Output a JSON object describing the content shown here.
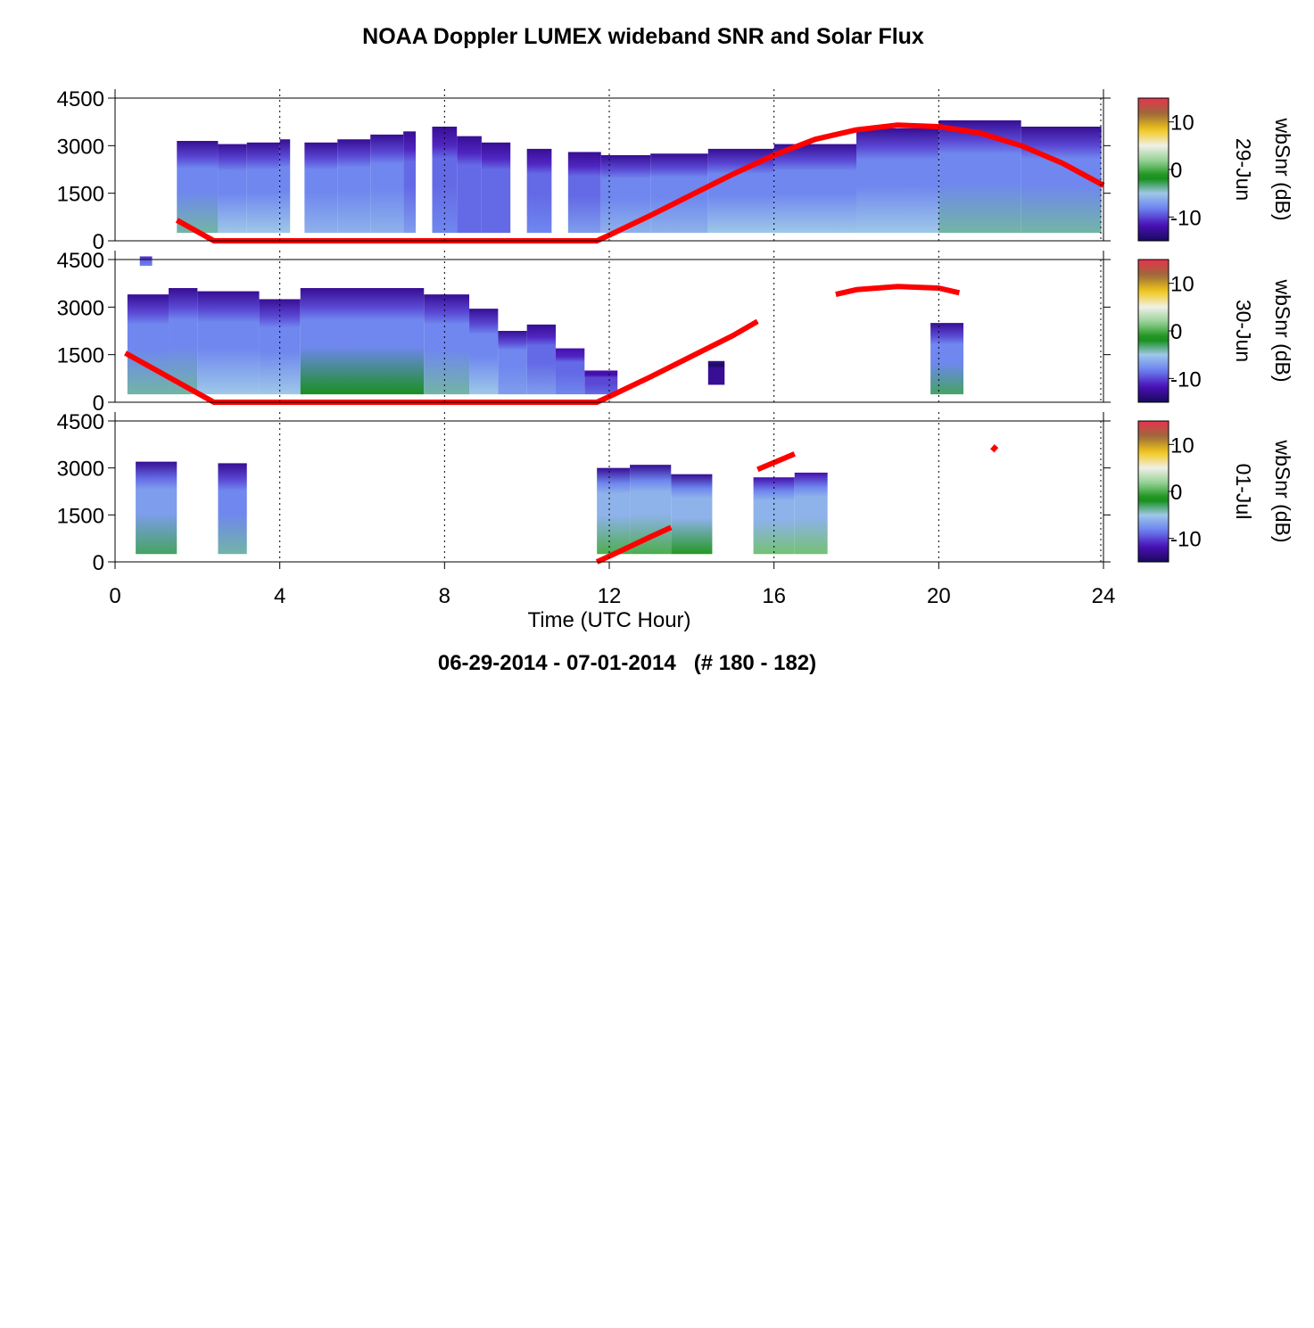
{
  "title": "NOAA Doppler LUMEX wideband SNR and Solar Flux",
  "footer": "06-29-2014 - 07-01-2014   (# 180 - 182)",
  "chart_data": {
    "type": "heatmap",
    "xlabel": "Time (UTC Hour)",
    "xlim": [
      0,
      24
    ],
    "xticks": [
      "0",
      "4",
      "8",
      "12",
      "16",
      "20",
      "24"
    ],
    "ylim": [
      0,
      4500
    ],
    "yticks": [
      "0",
      "1500",
      "3000",
      "4500"
    ],
    "colorbar": {
      "label": "wbSnr (dB)",
      "range": [
        -15,
        15
      ],
      "ticks": [
        "-10",
        "0",
        "10"
      ]
    },
    "colors": {
      "snr_scale": [
        "#1a0a5e",
        "#4a10b8",
        "#6a80f0",
        "#9ec8e8",
        "#0a8a0a",
        "#8fcf8f",
        "#f0f0e8",
        "#f2c81a",
        "#9a6a3a",
        "#e8334e"
      ],
      "solar_flux": "#ff0000"
    },
    "panels": [
      {
        "day": "29-Jun",
        "snr_columns": [
          {
            "x0": 1.5,
            "x1": 2.5,
            "top": 3150,
            "snr_low": -4,
            "snr_mid": -8,
            "snr_high": -13
          },
          {
            "x0": 2.5,
            "x1": 3.2,
            "top": 3050,
            "snr_low": -5,
            "snr_mid": -8,
            "snr_high": -13
          },
          {
            "x0": 3.2,
            "x1": 4.0,
            "top": 3100,
            "snr_low": -5,
            "snr_mid": -8,
            "snr_high": -13
          },
          {
            "x0": 4.0,
            "x1": 4.25,
            "top": 3200,
            "snr_low": -5,
            "snr_mid": -8,
            "snr_high": -13
          },
          {
            "x0": 4.6,
            "x1": 5.4,
            "top": 3100,
            "snr_low": -6,
            "snr_mid": -8,
            "snr_high": -13
          },
          {
            "x0": 5.4,
            "x1": 6.2,
            "top": 3200,
            "snr_low": -6,
            "snr_mid": -8,
            "snr_high": -13
          },
          {
            "x0": 6.2,
            "x1": 7.0,
            "top": 3350,
            "snr_low": -6,
            "snr_mid": -8,
            "snr_high": -13
          },
          {
            "x0": 7.0,
            "x1": 7.3,
            "top": 3450,
            "snr_low": -7,
            "snr_mid": -9,
            "snr_high": -13
          },
          {
            "x0": 7.7,
            "x1": 8.3,
            "top": 3600,
            "snr_low": -8,
            "snr_mid": -9,
            "snr_high": -13
          },
          {
            "x0": 8.3,
            "x1": 8.9,
            "top": 3300,
            "snr_low": -9,
            "snr_mid": -9,
            "snr_high": -13
          },
          {
            "x0": 8.9,
            "x1": 9.6,
            "top": 3100,
            "snr_low": -9,
            "snr_mid": -9,
            "snr_high": -13
          },
          {
            "x0": 10.0,
            "x1": 10.6,
            "top": 2900,
            "snr_low": -8,
            "snr_mid": -9,
            "snr_high": -13
          },
          {
            "x0": 11.0,
            "x1": 11.8,
            "top": 2800,
            "snr_low": -7,
            "snr_mid": -9,
            "snr_high": -13
          },
          {
            "x0": 11.8,
            "x1": 13.0,
            "top": 2700,
            "snr_low": -6,
            "snr_mid": -8,
            "snr_high": -13
          },
          {
            "x0": 13.0,
            "x1": 14.4,
            "top": 2750,
            "snr_low": -6,
            "snr_mid": -8,
            "snr_high": -13
          },
          {
            "x0": 14.4,
            "x1": 16.0,
            "top": 2900,
            "snr_low": -5,
            "snr_mid": -8,
            "snr_high": -13
          },
          {
            "x0": 16.0,
            "x1": 18.0,
            "top": 3050,
            "snr_low": -5,
            "snr_mid": -8,
            "snr_high": -13
          },
          {
            "x0": 18.0,
            "x1": 20.0,
            "top": 3550,
            "snr_low": -5,
            "snr_mid": -8,
            "snr_high": -13
          },
          {
            "x0": 20.0,
            "x1": 22.0,
            "top": 3800,
            "snr_low": -4,
            "snr_mid": -8,
            "snr_high": -13
          },
          {
            "x0": 22.0,
            "x1": 23.95,
            "top": 3600,
            "snr_low": -4,
            "snr_mid": -8,
            "snr_high": -13
          }
        ],
        "solar_flux_segments": [
          [
            [
              1.5,
              650
            ],
            [
              2.4,
              0
            ],
            [
              11.7,
              0
            ],
            [
              12.0,
              180
            ],
            [
              13.0,
              800
            ],
            [
              14.0,
              1450
            ],
            [
              15.0,
              2100
            ],
            [
              16.0,
              2700
            ],
            [
              17.0,
              3200
            ],
            [
              18.0,
              3500
            ],
            [
              19.0,
              3650
            ],
            [
              20.0,
              3600
            ],
            [
              21.0,
              3400
            ],
            [
              22.0,
              3000
            ],
            [
              23.0,
              2450
            ],
            [
              24.0,
              1750
            ]
          ]
        ]
      },
      {
        "day": "30-Jun",
        "snr_columns": [
          {
            "x0": 0.6,
            "x1": 0.9,
            "top": 4600,
            "bottom": 4300,
            "snr_low": -8,
            "snr_mid": -9,
            "snr_high": -10
          },
          {
            "x0": 0.3,
            "x1": 1.3,
            "top": 3400,
            "snr_low": -4,
            "snr_mid": -8,
            "snr_high": -13
          },
          {
            "x0": 1.3,
            "x1": 2.0,
            "top": 3600,
            "snr_low": -4,
            "snr_mid": -8,
            "snr_high": -13
          },
          {
            "x0": 2.0,
            "x1": 3.5,
            "top": 3500,
            "snr_low": -5,
            "snr_mid": -8,
            "snr_high": -13
          },
          {
            "x0": 3.5,
            "x1": 4.5,
            "top": 3250,
            "snr_low": -5,
            "snr_mid": -8,
            "snr_high": -13
          },
          {
            "x0": 4.5,
            "x1": 7.5,
            "top": 3600,
            "snr_low": -2,
            "snr_mid": -8,
            "snr_high": -13
          },
          {
            "x0": 7.5,
            "x1": 8.6,
            "top": 3400,
            "snr_low": -4,
            "snr_mid": -8,
            "snr_high": -13
          },
          {
            "x0": 8.6,
            "x1": 9.3,
            "top": 2950,
            "snr_low": -5,
            "snr_mid": -8,
            "snr_high": -13
          },
          {
            "x0": 9.3,
            "x1": 10.0,
            "top": 2250,
            "snr_low": -7,
            "snr_mid": -8,
            "snr_high": -13
          },
          {
            "x0": 10.0,
            "x1": 10.7,
            "top": 2450,
            "snr_low": -7,
            "snr_mid": -9,
            "snr_high": -13
          },
          {
            "x0": 10.7,
            "x1": 11.4,
            "top": 1700,
            "snr_low": -8,
            "snr_mid": -9,
            "snr_high": -12
          },
          {
            "x0": 11.4,
            "x1": 12.2,
            "top": 1000,
            "snr_low": -9,
            "snr_mid": -10,
            "snr_high": -12
          },
          {
            "x0": 14.4,
            "x1": 14.8,
            "top": 1300,
            "bottom": 550,
            "snr_low": -13,
            "snr_mid": -13,
            "snr_high": -13
          },
          {
            "x0": 19.8,
            "x1": 20.6,
            "top": 2500,
            "snr_low": -3,
            "snr_mid": -8,
            "snr_high": -13
          }
        ],
        "solar_flux_segments": [
          [
            [
              0.25,
              1550
            ],
            [
              2.4,
              0
            ],
            [
              11.7,
              0
            ],
            [
              12.0,
              180
            ],
            [
              13.0,
              800
            ],
            [
              14.0,
              1450
            ],
            [
              15.0,
              2100
            ],
            [
              15.6,
              2550
            ]
          ],
          [
            [
              17.5,
              3400
            ],
            [
              18.0,
              3550
            ],
            [
              19.0,
              3650
            ],
            [
              20.0,
              3600
            ],
            [
              20.5,
              3450
            ]
          ]
        ]
      },
      {
        "day": "01-Jul",
        "snr_columns": [
          {
            "x0": 0.5,
            "x1": 1.5,
            "top": 3200,
            "snr_low": -3,
            "snr_mid": -7,
            "snr_high": -13
          },
          {
            "x0": 2.5,
            "x1": 3.2,
            "top": 3150,
            "snr_low": -4,
            "snr_mid": -8,
            "snr_high": -13
          },
          {
            "x0": 11.7,
            "x1": 12.5,
            "top": 3000,
            "snr_low": 0,
            "snr_mid": -6,
            "snr_high": -13
          },
          {
            "x0": 12.5,
            "x1": 13.5,
            "top": 3100,
            "snr_low": 0,
            "snr_mid": -6,
            "snr_high": -13
          },
          {
            "x0": 13.5,
            "x1": 14.5,
            "top": 2800,
            "snr_low": -1,
            "snr_mid": -6,
            "snr_high": -13
          },
          {
            "x0": 15.5,
            "x1": 16.5,
            "top": 2700,
            "snr_low": 1,
            "snr_mid": -6,
            "snr_high": -12
          },
          {
            "x0": 16.5,
            "x1": 17.3,
            "top": 2850,
            "snr_low": 1,
            "snr_mid": -6,
            "snr_high": -12
          }
        ],
        "solar_flux_segments": [
          [
            [
              11.7,
              0
            ],
            [
              12.0,
              180
            ],
            [
              13.0,
              800
            ],
            [
              13.5,
              1100
            ]
          ],
          [
            [
              15.6,
              2950
            ],
            [
              16.5,
              3450
            ]
          ],
          [
            [
              21.3,
              3550
            ],
            [
              21.4,
              3700
            ]
          ]
        ]
      }
    ]
  }
}
